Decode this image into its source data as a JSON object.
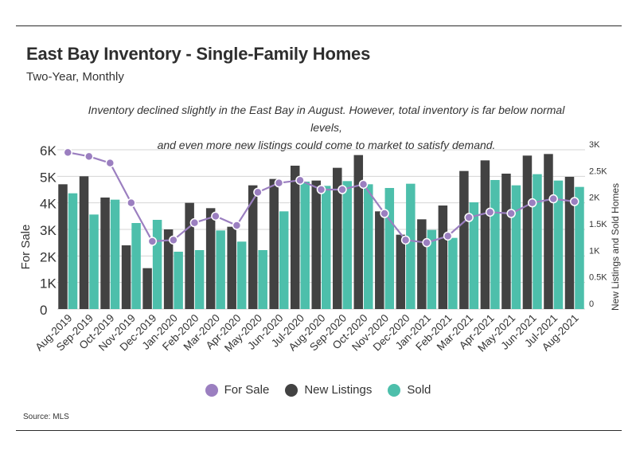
{
  "header": {
    "title": "East Bay Inventory - Single-Family Homes",
    "subtitle": "Two-Year, Monthly"
  },
  "annotation": {
    "line1": "Inventory declined slightly in the East Bay in August. However, total inventory is far below normal levels,",
    "line2": "and even more new listings could come to market to satisfy demand."
  },
  "footer": {
    "source": "Source:  MLS"
  },
  "colors": {
    "for_sale": "#9b7fc0",
    "new_listings": "#424242",
    "sold": "#4dbfab",
    "grid": "#d4d4d4",
    "text": "#333333"
  },
  "chart_data": {
    "type": "bar",
    "categories": [
      "Aug-2019",
      "Sep-2019",
      "Oct-2019",
      "Nov-2019",
      "Dec-2019",
      "Jan-2020",
      "Feb-2020",
      "Mar-2020",
      "Apr-2020",
      "May-2020",
      "Jun-2020",
      "Jul-2020",
      "Aug-2020",
      "Sep-2020",
      "Oct-2020",
      "Nov-2020",
      "Dec-2020",
      "Jan-2021",
      "Feb-2021",
      "Mar-2021",
      "Apr-2021",
      "May-2021",
      "Jun-2021",
      "Jul-2021",
      "Aug-2021"
    ],
    "ylabel": "For Sale",
    "y2label": "New Listings and Sold Homes",
    "ylim": [
      0,
      6000
    ],
    "y2lim": [
      0,
      3000
    ],
    "yticks": [
      "0",
      "1K",
      "2K",
      "3K",
      "4K",
      "5K",
      "6K"
    ],
    "y2ticks": [
      "0",
      "0.5K",
      "1K",
      "1.5K",
      "2K",
      "2.5K",
      "3K"
    ],
    "grid": true,
    "legend_position": "bottom",
    "series": [
      {
        "name": "For Sale",
        "type": "line",
        "axis": "left",
        "values": [
          5900,
          5750,
          5500,
          4000,
          2550,
          2600,
          3250,
          3500,
          3150,
          4400,
          4750,
          4850,
          4500,
          4500,
          4700,
          3600,
          2600,
          2500,
          2750,
          3450,
          3650,
          3600,
          4000,
          4150,
          4050
        ]
      },
      {
        "name": "New Listings",
        "type": "bar",
        "axis": "right",
        "values": [
          2350,
          2500,
          2100,
          1200,
          770,
          1500,
          2000,
          1900,
          1550,
          2330,
          2450,
          2700,
          2420,
          2660,
          2900,
          1840,
          1400,
          1690,
          1950,
          2600,
          2800,
          2550,
          2890,
          2920,
          2490
        ]
      },
      {
        "name": "Sold",
        "type": "bar",
        "axis": "right",
        "values": [
          2180,
          1780,
          2060,
          1620,
          1680,
          1080,
          1110,
          1480,
          1270,
          1110,
          1840,
          2400,
          2320,
          2410,
          2350,
          2280,
          2360,
          1490,
          1340,
          2010,
          2430,
          2330,
          2540,
          2420,
          2300
        ]
      }
    ]
  }
}
